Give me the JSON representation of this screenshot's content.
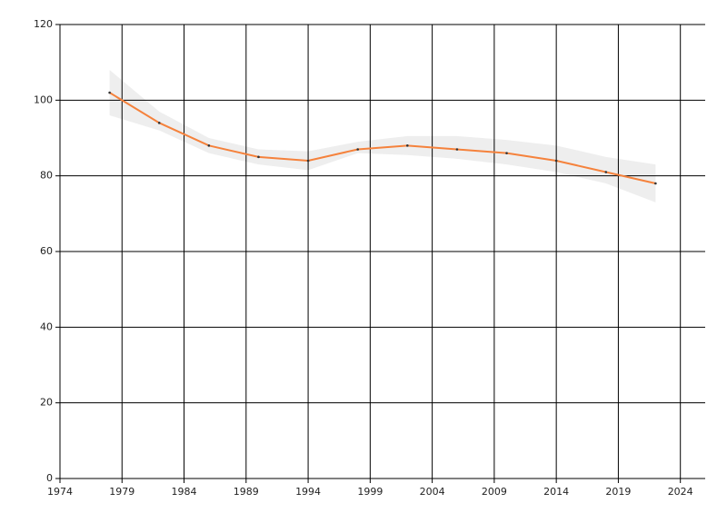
{
  "chart_data": {
    "type": "line",
    "x": [
      1978,
      1982,
      1986,
      1990,
      1994,
      1998,
      2002,
      2006,
      2010,
      2014,
      2018,
      2022
    ],
    "series": [
      {
        "color": "#f5823c",
        "values": [
          102,
          94,
          88,
          85,
          84,
          87,
          88,
          87,
          86,
          84,
          81,
          78
        ]
      }
    ],
    "band": {
      "color": "#eeeeee",
      "upper": [
        108,
        97,
        90,
        87,
        86.5,
        89,
        90.5,
        90.5,
        89.5,
        88,
        85,
        83
      ],
      "lower": [
        96,
        92,
        86,
        83,
        81.5,
        86,
        85.5,
        84.5,
        83,
        81,
        78,
        73
      ]
    },
    "xlim": [
      1974,
      2026
    ],
    "xticks": [
      1974,
      1979,
      1984,
      1989,
      1994,
      1999,
      2004,
      2009,
      2014,
      2019,
      2024
    ],
    "ylim": [
      0,
      120
    ],
    "yticks": [
      0,
      20,
      40,
      60,
      80,
      100,
      120
    ],
    "grid": true
  }
}
